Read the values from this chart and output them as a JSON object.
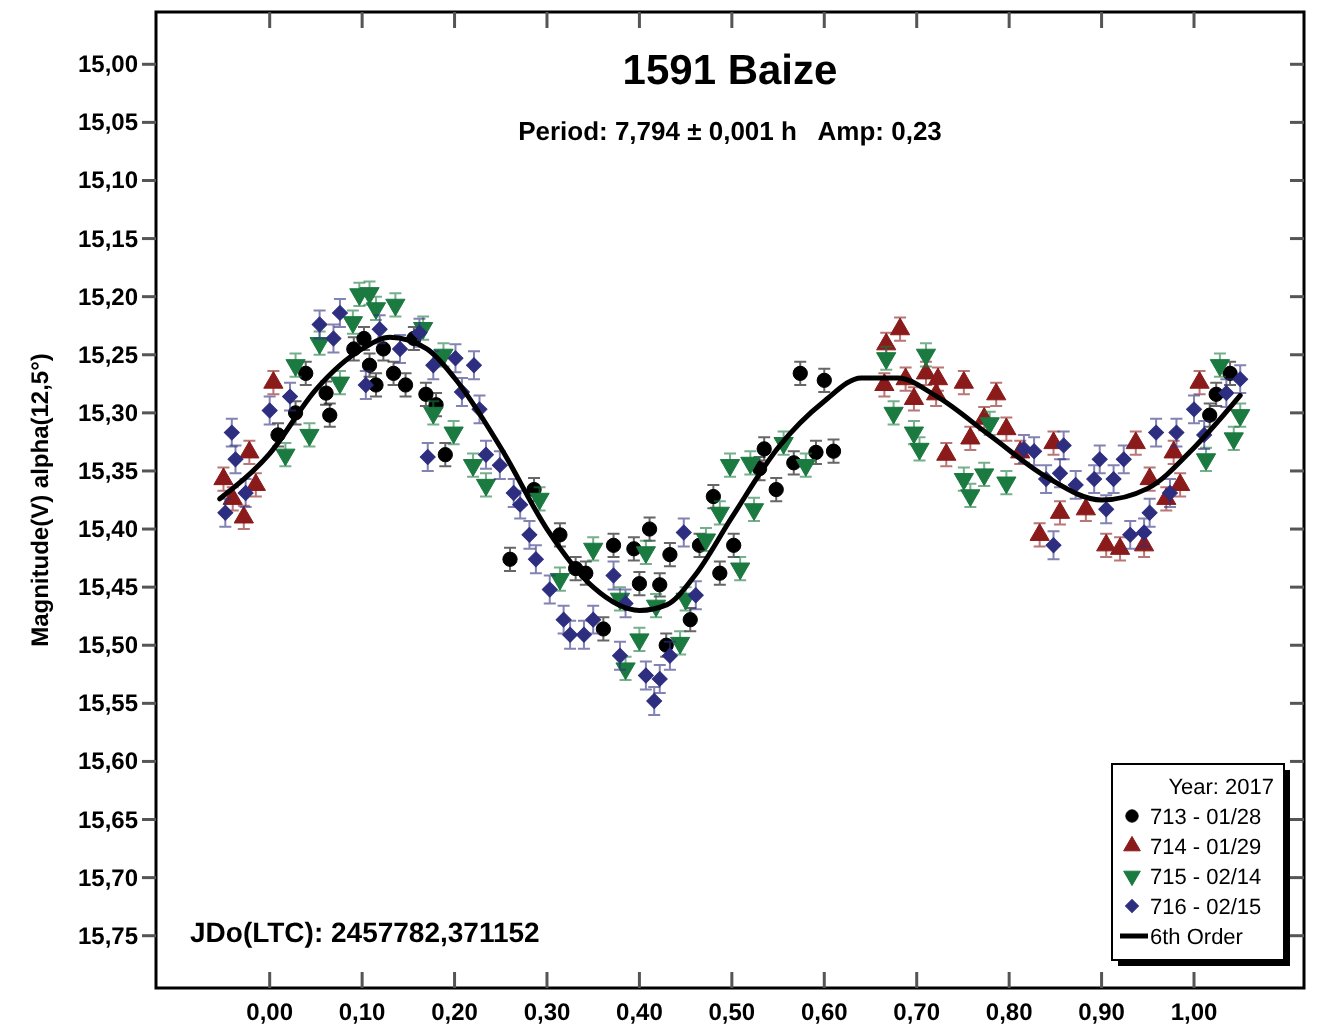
{
  "chart_data": {
    "type": "scatter",
    "title": "1591 Baize",
    "subtitle": "Period: 7,794 ± 0,001 h   Amp: 0,23",
    "ylabel": "Magnitude(V) alpha(12,5°)",
    "legend_title": "Year: 2017",
    "legend": "bottom right",
    "grid": false,
    "annotations": [
      "JDo(LTC): 2457782,371152"
    ],
    "xlim": [
      -0.123,
      1.119
    ],
    "ylim": [
      15.795,
      14.955
    ],
    "xticks": [
      {
        "value": 0,
        "label": "0,00"
      },
      {
        "value": 0.1,
        "label": "0,10"
      },
      {
        "value": 0.2,
        "label": "0,20"
      },
      {
        "value": 0.3,
        "label": "0,30"
      },
      {
        "value": 0.4,
        "label": "0,40"
      },
      {
        "value": 0.5,
        "label": "0,50"
      },
      {
        "value": 0.6,
        "label": "0,60"
      },
      {
        "value": 0.7,
        "label": "0,70"
      },
      {
        "value": 0.8,
        "label": "0,80"
      },
      {
        "value": 0.9,
        "label": "0,90"
      },
      {
        "value": 1,
        "label": "1,00"
      }
    ],
    "yticks": [
      {
        "value": 15,
        "label": "15,00"
      },
      {
        "value": 15.05,
        "label": "15,05"
      },
      {
        "value": 15.1,
        "label": "15,10"
      },
      {
        "value": 15.15,
        "label": "15,15"
      },
      {
        "value": 15.2,
        "label": "15,20"
      },
      {
        "value": 15.25,
        "label": "15,25"
      },
      {
        "value": 15.3,
        "label": "15,30"
      },
      {
        "value": 15.35,
        "label": "15,35"
      },
      {
        "value": 15.4,
        "label": "15,40"
      },
      {
        "value": 15.45,
        "label": "15,45"
      },
      {
        "value": 15.5,
        "label": "15,50"
      },
      {
        "value": 15.55,
        "label": "15,55"
      },
      {
        "value": 15.6,
        "label": "15,60"
      },
      {
        "value": 15.65,
        "label": "15,65"
      },
      {
        "value": 15.7,
        "label": "15,70"
      },
      {
        "value": 15.75,
        "label": "15,75"
      }
    ],
    "series": [
      {
        "name": "713 - 01/28",
        "marker": "circle",
        "color": "#000000",
        "x": [
          0.009,
          0.028,
          0.039,
          0.061,
          0.065,
          0.091,
          0.102,
          0.108,
          0.115,
          0.123,
          0.134,
          0.147,
          0.156,
          0.169,
          0.18,
          0.19,
          0.26,
          0.286,
          0.314,
          0.331,
          0.342,
          0.361,
          0.372,
          0.394,
          0.4,
          0.411,
          0.422,
          0.429,
          0.433,
          0.455,
          0.465,
          0.48,
          0.487,
          0.502,
          0.53,
          0.535,
          0.548,
          0.567,
          0.574,
          0.591,
          0.6,
          0.61,
          1.017,
          1.024,
          1.039
        ],
        "values": [
          15.319,
          15.3,
          15.266,
          15.283,
          15.302,
          15.245,
          15.236,
          15.259,
          15.276,
          15.245,
          15.266,
          15.276,
          15.236,
          15.284,
          15.293,
          15.336,
          15.426,
          15.366,
          15.405,
          15.434,
          15.438,
          15.486,
          15.414,
          15.417,
          15.447,
          15.4,
          15.448,
          15.5,
          15.422,
          15.478,
          15.414,
          15.372,
          15.438,
          15.414,
          15.348,
          15.331,
          15.366,
          15.343,
          15.266,
          15.334,
          15.272,
          15.333,
          15.302,
          15.284,
          15.266
        ],
        "errors": [
          0.01,
          0.01,
          0.01,
          0.01,
          0.01,
          0.01,
          0.01,
          0.01,
          0.01,
          0.01,
          0.01,
          0.01,
          0.01,
          0.01,
          0.01,
          0.01,
          0.01,
          0.01,
          0.01,
          0.01,
          0.01,
          0.01,
          0.01,
          0.01,
          0.01,
          0.01,
          0.01,
          0.01,
          0.01,
          0.01,
          0.01,
          0.01,
          0.01,
          0.01,
          0.01,
          0.01,
          0.01,
          0.01,
          0.01,
          0.01,
          0.01,
          0.01,
          0.01,
          0.01,
          0.01
        ]
      },
      {
        "name": "714 - 01/29",
        "marker": "triangle",
        "color": "#8b1a1a",
        "x": [
          -0.05,
          -0.04,
          -0.028,
          -0.022,
          -0.015,
          0.004,
          0.665,
          0.667,
          0.682,
          0.688,
          0.697,
          0.71,
          0.721,
          0.723,
          0.732,
          0.751,
          0.758,
          0.773,
          0.786,
          0.797,
          0.812,
          0.833,
          0.848,
          0.855,
          0.883,
          0.905,
          0.92,
          0.937,
          0.946,
          0.952,
          0.97,
          0.978,
          0.985,
          1.006
        ],
        "values": [
          15.357,
          15.374,
          15.39,
          15.334,
          15.362,
          15.274,
          15.276,
          15.241,
          15.228,
          15.271,
          15.288,
          15.266,
          15.284,
          15.271,
          15.336,
          15.274,
          15.322,
          15.305,
          15.284,
          15.314,
          15.334,
          15.405,
          15.326,
          15.386,
          15.383,
          15.414,
          15.417,
          15.326,
          15.414,
          15.357,
          15.374,
          15.334,
          15.362,
          15.274
        ],
        "errors": [
          0.01,
          0.01,
          0.01,
          0.01,
          0.01,
          0.01,
          0.01,
          0.01,
          0.01,
          0.01,
          0.01,
          0.01,
          0.01,
          0.01,
          0.01,
          0.01,
          0.01,
          0.01,
          0.01,
          0.01,
          0.01,
          0.01,
          0.01,
          0.01,
          0.01,
          0.01,
          0.01,
          0.01,
          0.01,
          0.01,
          0.01,
          0.01,
          0.01,
          0.01
        ]
      },
      {
        "name": "715 - 02/14",
        "marker": "triangle-down",
        "color": "#1a7a40",
        "x": [
          0.017,
          0.028,
          0.043,
          0.054,
          0.076,
          0.09,
          0.097,
          0.108,
          0.115,
          0.136,
          0.166,
          0.177,
          0.188,
          0.199,
          0.22,
          0.234,
          0.292,
          0.314,
          0.35,
          0.379,
          0.385,
          0.4,
          0.407,
          0.418,
          0.444,
          0.45,
          0.472,
          0.487,
          0.498,
          0.509,
          0.52,
          0.524,
          0.556,
          0.58,
          0.667,
          0.675,
          0.697,
          0.703,
          0.71,
          0.751,
          0.758,
          0.773,
          0.779,
          0.797,
          1.013,
          1.028,
          1.043,
          1.05
        ],
        "values": [
          15.336,
          15.259,
          15.319,
          15.24,
          15.274,
          15.222,
          15.198,
          15.197,
          15.21,
          15.207,
          15.227,
          15.3,
          15.25,
          15.317,
          15.345,
          15.362,
          15.374,
          15.443,
          15.417,
          15.46,
          15.52,
          15.495,
          15.42,
          15.466,
          15.498,
          15.46,
          15.409,
          15.386,
          15.345,
          15.434,
          15.343,
          15.383,
          15.326,
          15.345,
          15.253,
          15.3,
          15.317,
          15.331,
          15.25,
          15.357,
          15.371,
          15.353,
          15.309,
          15.36,
          15.34,
          15.259,
          15.322,
          15.302
        ],
        "errors": [
          0.01,
          0.01,
          0.01,
          0.01,
          0.01,
          0.01,
          0.01,
          0.01,
          0.01,
          0.01,
          0.01,
          0.01,
          0.01,
          0.01,
          0.01,
          0.01,
          0.01,
          0.01,
          0.01,
          0.01,
          0.01,
          0.01,
          0.01,
          0.01,
          0.01,
          0.01,
          0.01,
          0.01,
          0.01,
          0.01,
          0.01,
          0.01,
          0.01,
          0.01,
          0.01,
          0.01,
          0.01,
          0.01,
          0.01,
          0.01,
          0.01,
          0.01,
          0.01,
          0.01,
          0.01,
          0.01,
          0.01,
          0.01
        ]
      },
      {
        "name": "716 - 02/15",
        "marker": "diamond",
        "color": "#2e2e80",
        "x": [
          -0.048,
          -0.041,
          -0.037,
          -0.026,
          0.0,
          0.022,
          0.054,
          0.069,
          0.076,
          0.104,
          0.119,
          0.141,
          0.162,
          0.171,
          0.177,
          0.201,
          0.208,
          0.221,
          0.227,
          0.234,
          0.249,
          0.264,
          0.271,
          0.281,
          0.288,
          0.303,
          0.318,
          0.325,
          0.34,
          0.35,
          0.372,
          0.379,
          0.385,
          0.407,
          0.416,
          0.422,
          0.433,
          0.448,
          0.461,
          0.816,
          0.827,
          0.84,
          0.848,
          0.855,
          0.859,
          0.872,
          0.892,
          0.898,
          0.905,
          0.913,
          0.924,
          0.931,
          0.946,
          0.952,
          0.959,
          0.974,
          0.981,
          1.0,
          1.011,
          1.035,
          1.05
        ],
        "values": [
          15.386,
          15.317,
          15.34,
          15.369,
          15.298,
          15.286,
          15.224,
          15.236,
          15.214,
          15.276,
          15.228,
          15.245,
          15.231,
          15.338,
          15.259,
          15.253,
          15.282,
          15.259,
          15.297,
          15.336,
          15.345,
          15.369,
          15.379,
          15.405,
          15.426,
          15.452,
          15.478,
          15.491,
          15.491,
          15.478,
          15.44,
          15.509,
          15.464,
          15.526,
          15.548,
          15.529,
          15.509,
          15.403,
          15.457,
          15.331,
          15.333,
          15.357,
          15.414,
          15.352,
          15.328,
          15.362,
          15.357,
          15.34,
          15.383,
          15.357,
          15.34,
          15.405,
          15.403,
          15.386,
          15.317,
          15.369,
          15.317,
          15.297,
          15.319,
          15.283,
          15.271
        ],
        "errors": [
          0.012,
          0.012,
          0.012,
          0.012,
          0.012,
          0.012,
          0.012,
          0.012,
          0.012,
          0.012,
          0.012,
          0.012,
          0.012,
          0.012,
          0.012,
          0.012,
          0.012,
          0.012,
          0.012,
          0.012,
          0.012,
          0.012,
          0.012,
          0.012,
          0.012,
          0.012,
          0.012,
          0.012,
          0.012,
          0.012,
          0.012,
          0.012,
          0.012,
          0.012,
          0.012,
          0.012,
          0.012,
          0.012,
          0.012,
          0.012,
          0.012,
          0.012,
          0.012,
          0.012,
          0.012,
          0.012,
          0.012,
          0.012,
          0.012,
          0.012,
          0.012,
          0.012,
          0.012,
          0.012,
          0.012,
          0.012,
          0.012,
          0.012,
          0.012,
          0.012,
          0.012
        ]
      },
      {
        "name": "6th Order",
        "type": "line",
        "marker": "none",
        "line_style": "solid",
        "color": "#000000",
        "x": [
          -0.054,
          0.0,
          0.05,
          0.1,
          0.13,
          0.17,
          0.2,
          0.25,
          0.3,
          0.35,
          0.4,
          0.43,
          0.46,
          0.5,
          0.55,
          0.6,
          0.64,
          0.68,
          0.72,
          0.78,
          0.84,
          0.9,
          0.95,
          1.0,
          1.05
        ],
        "values": [
          15.374,
          15.335,
          15.28,
          15.245,
          15.235,
          15.245,
          15.27,
          15.33,
          15.4,
          15.45,
          15.47,
          15.465,
          15.44,
          15.39,
          15.33,
          15.29,
          15.27,
          15.27,
          15.285,
          15.32,
          15.355,
          15.375,
          15.365,
          15.33,
          15.285
        ]
      }
    ]
  }
}
